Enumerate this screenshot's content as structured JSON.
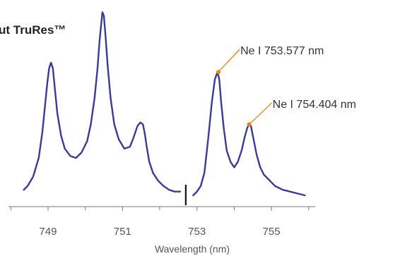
{
  "chart_data": {
    "type": "line",
    "title": "ut TruRes™",
    "xlabel": "Wavelength (nm)",
    "ylabel": "",
    "xlim": [
      747.9,
      756.1
    ],
    "ylim": [
      0,
      1.0
    ],
    "grid": false,
    "x_ticks": [
      748,
      749,
      750,
      751,
      752,
      753,
      754,
      755,
      756
    ],
    "x_tick_labels": [
      {
        "value": 749,
        "label": "749"
      },
      {
        "value": 751,
        "label": "751"
      },
      {
        "value": 753,
        "label": "753"
      },
      {
        "value": 755,
        "label": "755"
      }
    ],
    "break_marker_x": 752.7,
    "series": [
      {
        "color": "#3a3a9a",
        "segments": [
          {
            "x": [
              748.35,
              748.45,
              748.6,
              748.75,
              748.85,
              748.92,
              748.98,
              749.03,
              749.08,
              749.13,
              749.18,
              749.25,
              749.35,
              749.45,
              749.6,
              749.75,
              749.9,
              750.05,
              750.15,
              750.25,
              750.33,
              750.38,
              750.42,
              750.46,
              750.5,
              750.55,
              750.6,
              750.68,
              750.78,
              750.9,
              751.05,
              751.2,
              751.3,
              751.4,
              751.48,
              751.55,
              751.6,
              751.65,
              751.72,
              751.82,
              751.95,
              752.1,
              752.25,
              752.4,
              752.55
            ],
            "y": [
              0.03,
              0.05,
              0.1,
              0.2,
              0.34,
              0.48,
              0.6,
              0.68,
              0.71,
              0.68,
              0.58,
              0.44,
              0.32,
              0.25,
              0.21,
              0.2,
              0.23,
              0.29,
              0.38,
              0.52,
              0.68,
              0.82,
              0.9,
              0.98,
              0.96,
              0.84,
              0.7,
              0.52,
              0.38,
              0.3,
              0.25,
              0.26,
              0.31,
              0.37,
              0.39,
              0.38,
              0.33,
              0.26,
              0.18,
              0.12,
              0.08,
              0.05,
              0.03,
              0.02,
              0.02
            ]
          },
          {
            "x": [
              752.9,
              753.0,
              753.1,
              753.2,
              753.3,
              753.4,
              753.48,
              753.55,
              753.6,
              753.65,
              753.72,
              753.8,
              753.9,
              754.0,
              754.1,
              754.2,
              754.28,
              754.35,
              754.4,
              754.45,
              754.52,
              754.6,
              754.7,
              754.8,
              754.95,
              755.1,
              755.3,
              755.5,
              755.7,
              755.9
            ],
            "y": [
              0.0,
              0.02,
              0.05,
              0.12,
              0.3,
              0.5,
              0.62,
              0.66,
              0.62,
              0.5,
              0.36,
              0.24,
              0.18,
              0.15,
              0.18,
              0.24,
              0.31,
              0.36,
              0.38,
              0.37,
              0.3,
              0.22,
              0.15,
              0.11,
              0.08,
              0.05,
              0.03,
              0.02,
              0.01,
              0.0
            ]
          }
        ]
      }
    ],
    "annotations": [
      {
        "label": "Ne I 753.577 nm",
        "x": 753.577,
        "y": 0.66,
        "color": "#e8851a",
        "leader": "upper"
      },
      {
        "label": "Ne I 754.404 nm",
        "x": 754.404,
        "y": 0.38,
        "color": "#e8851a",
        "leader": "lower"
      }
    ]
  }
}
